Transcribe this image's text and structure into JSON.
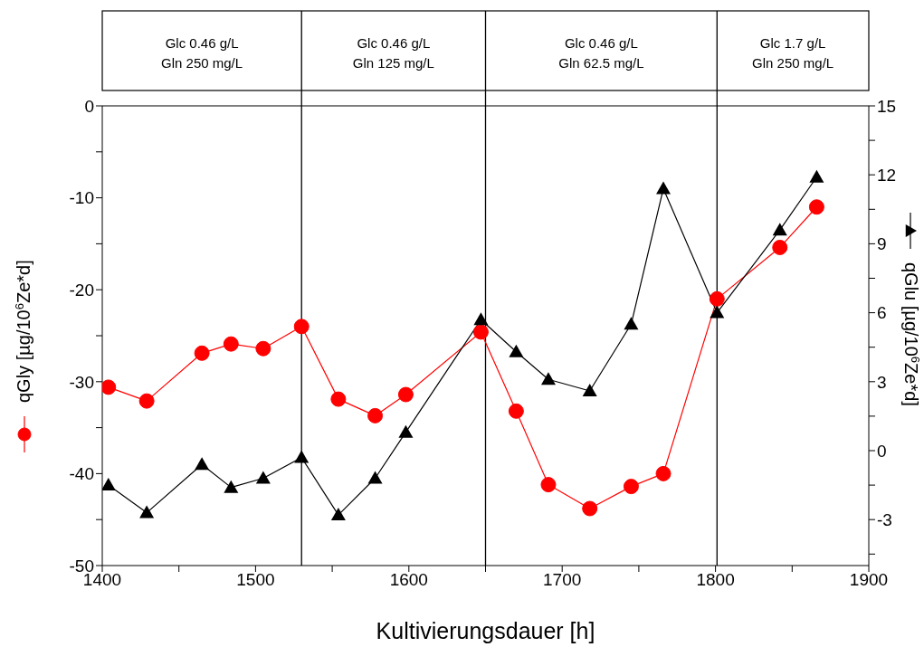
{
  "chart_data": {
    "type": "line",
    "xlabel": "Kultivierungsdauer [h]",
    "ylabel": "qGly [µg/10$^{6}$Ze*d]",
    "y2label": "qGlu [µg/10$^{6}$Ze*d]",
    "x": [
      1404,
      1429,
      1465,
      1484,
      1505,
      1530,
      1554,
      1578,
      1598,
      1647,
      1670,
      1691,
      1718,
      1745,
      1766,
      1801,
      1842,
      1866
    ],
    "series": [
      {
        "color": "#ff0000",
        "marker": "circle",
        "values": [
          -30.6,
          -32.1,
          -26.9,
          -25.9,
          -26.4,
          -24.0,
          -31.9,
          -33.7,
          -31.4,
          -24.6,
          -33.2,
          -41.2,
          -43.8,
          -41.4,
          -40.0,
          -21.0,
          -15.4,
          -11.0
        ]
      },
      {
        "color": "#000000",
        "marker": "triangle",
        "axis": "y2",
        "values": [
          -1.5,
          -2.7,
          -0.6,
          -1.6,
          -1.2,
          -0.3,
          -2.8,
          -1.2,
          0.8,
          5.7,
          4.3,
          3.1,
          2.6,
          5.5,
          11.4,
          6.0,
          9.6,
          11.9
        ]
      }
    ],
    "xlim": [
      1400,
      1900
    ],
    "xticks": [
      1400,
      {
        "value": 1450,
        "label": null
      },
      1500,
      {
        "value": 1550,
        "label": null
      },
      1600,
      {
        "value": 1650,
        "label": null
      },
      1700,
      {
        "value": 1750,
        "label": null
      },
      1800,
      {
        "value": 1850,
        "label": null
      },
      1900
    ],
    "ylim": [
      -50,
      0
    ],
    "yticks": [
      -50,
      {
        "value": -45,
        "label": null
      },
      -40,
      {
        "value": -35,
        "label": null
      },
      -30,
      {
        "value": -25,
        "label": null
      },
      -20,
      {
        "value": -15,
        "label": null
      },
      -10,
      {
        "value": -5,
        "label": null
      },
      0
    ],
    "y2lim": [
      -5,
      15
    ],
    "y2ticks": [
      {
        "value": -4.5,
        "label": null
      },
      -3,
      {
        "value": -1.5,
        "label": null
      },
      0,
      {
        "value": 1.5,
        "label": null
      },
      3,
      {
        "value": 4.5,
        "label": null
      },
      6,
      {
        "value": 7.5,
        "label": null
      },
      9,
      {
        "value": 10.5,
        "label": null
      },
      12,
      {
        "value": 13.5,
        "label": null
      },
      15
    ],
    "ref_lines": [
      {
        "axis": "x",
        "value": 1530,
        "color": "#000000"
      },
      {
        "axis": "x",
        "value": 1650,
        "color": "#000000"
      },
      {
        "axis": "x",
        "value": 1801,
        "color": "#000000"
      }
    ],
    "annotations": [
      "Glc 0.46 g/L\nGln 250 mg/L",
      "Glc 0.46 g/L\nGln 125 mg/L",
      "Glc 0.46 g/L\nGln 62.5 mg/L",
      "Glc 1.7 g/L\nGln 250 mg/L"
    ],
    "grid": false
  }
}
